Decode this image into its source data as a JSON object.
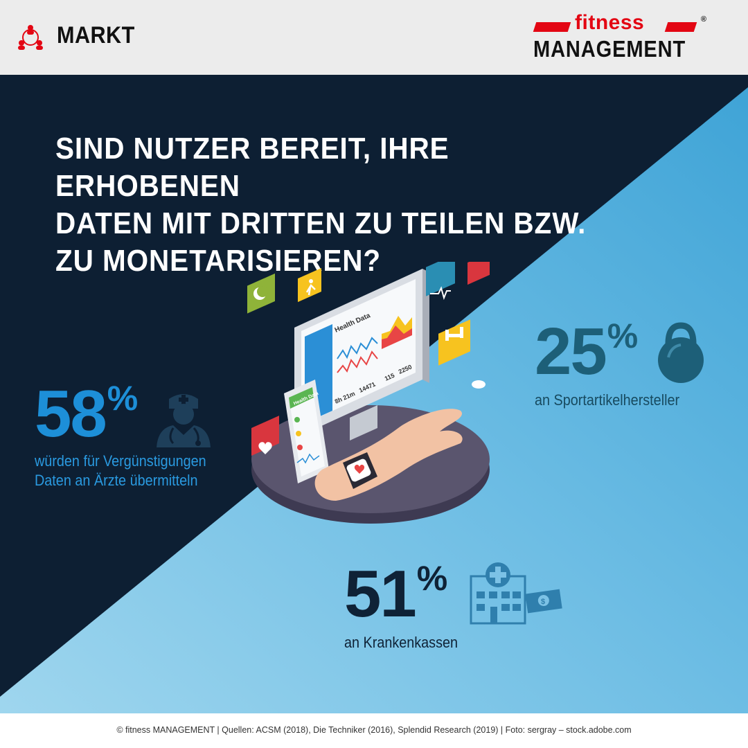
{
  "header": {
    "section_label": "MARKT",
    "section_icon": "network-people-icon",
    "logo": {
      "word_top": "fitness",
      "word_bottom": "MANAGEMENT",
      "registered": "®",
      "accent_color": "#e30613"
    }
  },
  "title": "SIND NUTZER BEREIT, IHRE ERHOBENEN\nDATEN MIT DRITTEN ZU TEILEN BZW.\nZU MONETARISIEREN?",
  "colors": {
    "dark_navy": "#0d1f33",
    "light_blue": "#8acde8",
    "mid_blue": "#4aa6d6",
    "accent_red": "#e30613"
  },
  "illustration": {
    "monitor_title": "Health Data",
    "phone_title": "Health Data",
    "readouts": [
      "8h 21m",
      "14471",
      "115",
      "2250"
    ]
  },
  "stats": [
    {
      "id": "aerzte",
      "value": "58",
      "unit": "%",
      "description": "würden für Vergünstigungen\nDaten an Ärzte übermitteln",
      "icon": "doctor-icon"
    },
    {
      "id": "sport",
      "value": "25",
      "unit": "%",
      "description": "an Sportartikelhersteller",
      "icon": "kettlebell-icon"
    },
    {
      "id": "kassen",
      "value": "51",
      "unit": "%",
      "description": "an Krankenkassen",
      "icon": "hospital-money-icon"
    }
  ],
  "footer": "© fitness MANAGEMENT  |  Quellen: ACSM (2018), Die Techniker (2016), Splendid Research (2019)  |  Foto: sergray – stock.adobe.com"
}
